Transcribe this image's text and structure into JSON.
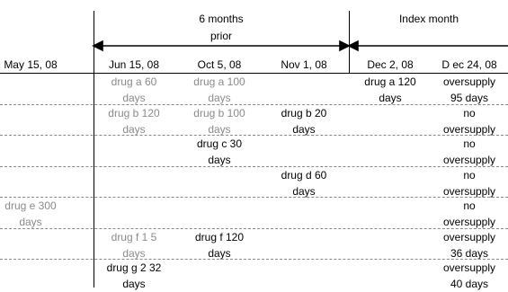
{
  "header": {
    "period_left": "6 months\nprior",
    "period_right": "Index month"
  },
  "dates": [
    "May 15, 08",
    "Jun 15, 08",
    "Oct 5, 08",
    "Nov 1, 08",
    "Dec 2, 08",
    "D ec 24, 08"
  ],
  "rows": [
    {
      "cells": [
        {
          "col": 1,
          "text": "drug a 60 days",
          "tone": "gray"
        },
        {
          "col": 2,
          "text": "drug a 100 days",
          "tone": "gray"
        },
        {
          "col": 4,
          "text": "drug a 120 days",
          "tone": "black"
        },
        {
          "col": 5,
          "text": "oversupply 95 days",
          "tone": "black"
        }
      ]
    },
    {
      "cells": [
        {
          "col": 1,
          "text": "drug b 120 days",
          "tone": "gray"
        },
        {
          "col": 2,
          "text": "drug b 100 days",
          "tone": "gray"
        },
        {
          "col": 3,
          "text": "drug b 20 days",
          "tone": "black"
        },
        {
          "col": 5,
          "text": "no oversupply",
          "tone": "black"
        }
      ]
    },
    {
      "cells": [
        {
          "col": 2,
          "text": "drug c 30 days",
          "tone": "black"
        },
        {
          "col": 5,
          "text": "no oversupply",
          "tone": "black"
        }
      ]
    },
    {
      "cells": [
        {
          "col": 3,
          "text": "drug d 60 days",
          "tone": "black"
        },
        {
          "col": 5,
          "text": "no oversupply",
          "tone": "black"
        }
      ]
    },
    {
      "cells": [
        {
          "col": 0,
          "text": "drug e 300 days",
          "tone": "gray"
        },
        {
          "col": 5,
          "text": "no oversupply",
          "tone": "black"
        }
      ]
    },
    {
      "cells": [
        {
          "col": 1,
          "text": "drug f 1 5 days",
          "tone": "gray"
        },
        {
          "col": 2,
          "text": "drug f 120 days",
          "tone": "black"
        },
        {
          "col": 5,
          "text": "oversupply 36 days",
          "tone": "black"
        }
      ]
    },
    {
      "cells": [
        {
          "col": 1,
          "text": "drug g 2 32 days",
          "tone": "black"
        },
        {
          "col": 5,
          "text": "oversupply 40 days",
          "tone": "black"
        }
      ]
    }
  ],
  "colors": {
    "text": "#000000",
    "gray_text": "#8a8a8a",
    "lines": "#000000",
    "dashed": "#888888"
  }
}
